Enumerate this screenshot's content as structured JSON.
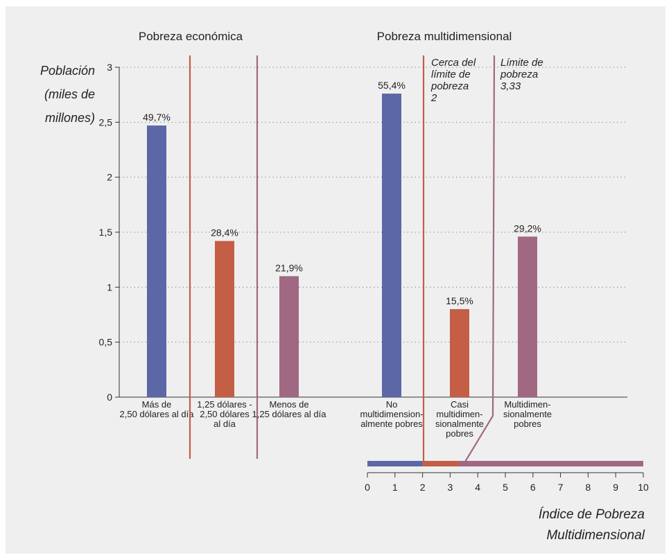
{
  "chart_data": {
    "type": "bar",
    "ylabel": [
      "Población",
      "(miles de",
      "millones)"
    ],
    "ylim": [
      0,
      3
    ],
    "yticks": [
      {
        "value": 0,
        "label": "0"
      },
      {
        "value": 0.5,
        "label": "0,5"
      },
      {
        "value": 1,
        "label": "1"
      },
      {
        "value": 1.5,
        "label": "1,5"
      },
      {
        "value": 2,
        "label": "2"
      },
      {
        "value": 2.5,
        "label": "2,5"
      },
      {
        "value": 3,
        "label": "3"
      }
    ],
    "grid": true,
    "groups": [
      {
        "title": "Pobreza económica"
      },
      {
        "title": "Pobreza multidimensional"
      }
    ],
    "bars": [
      {
        "group": 0,
        "category": [
          "Más de",
          "2,50 dólares al día"
        ],
        "value": 2.47,
        "label": "49,7%",
        "color": "#5b67a6"
      },
      {
        "group": 0,
        "category": [
          "1,25 dólares -",
          "2,50 dólares",
          "al día"
        ],
        "value": 1.42,
        "label": "28,4%",
        "color": "#c45e45"
      },
      {
        "group": 0,
        "category": [
          "Menos de",
          "1,25 dólares al día"
        ],
        "value": 1.1,
        "label": "21,9%",
        "color": "#a06883"
      },
      {
        "group": 1,
        "category": [
          "No",
          "multidimension-",
          "almente pobres"
        ],
        "value": 2.76,
        "label": "55,4%",
        "color": "#5b67a6"
      },
      {
        "group": 1,
        "category": [
          "Casi",
          "multidimen-",
          "sionalmente",
          "pobres"
        ],
        "value": 0.8,
        "label": "15,5%",
        "color": "#c45e45"
      },
      {
        "group": 1,
        "category": [
          "Multidimen-",
          "sionalmente",
          "pobres"
        ],
        "value": 1.46,
        "label": "29,2%",
        "color": "#a06883"
      }
    ],
    "annotations": [
      {
        "lines": [
          "Cerca del",
          "límite de",
          "pobreza",
          "2"
        ],
        "color": "#c45e45",
        "index_value": 2
      },
      {
        "lines": [
          "Límite de",
          "pobreza",
          "3,33"
        ],
        "color": "#a06883",
        "index_value": 3.33
      }
    ],
    "index_scale": {
      "xlabel": [
        "Índice de Pobreza",
        "Multidimensional"
      ],
      "xlim": [
        0,
        10
      ],
      "ticks": [
        "0",
        "1",
        "2",
        "3",
        "4",
        "5",
        "6",
        "7",
        "8",
        "9",
        "10"
      ],
      "segments": [
        {
          "from": 0,
          "to": 2,
          "color": "#5b67a6"
        },
        {
          "from": 2,
          "to": 3.33,
          "color": "#c45e45"
        },
        {
          "from": 3.33,
          "to": 10,
          "color": "#a06883"
        }
      ]
    },
    "colors": {
      "blue": "#5b67a6",
      "orange": "#c45e45",
      "mauve": "#a06883",
      "axis": "#333333",
      "grid": "#777777"
    }
  }
}
